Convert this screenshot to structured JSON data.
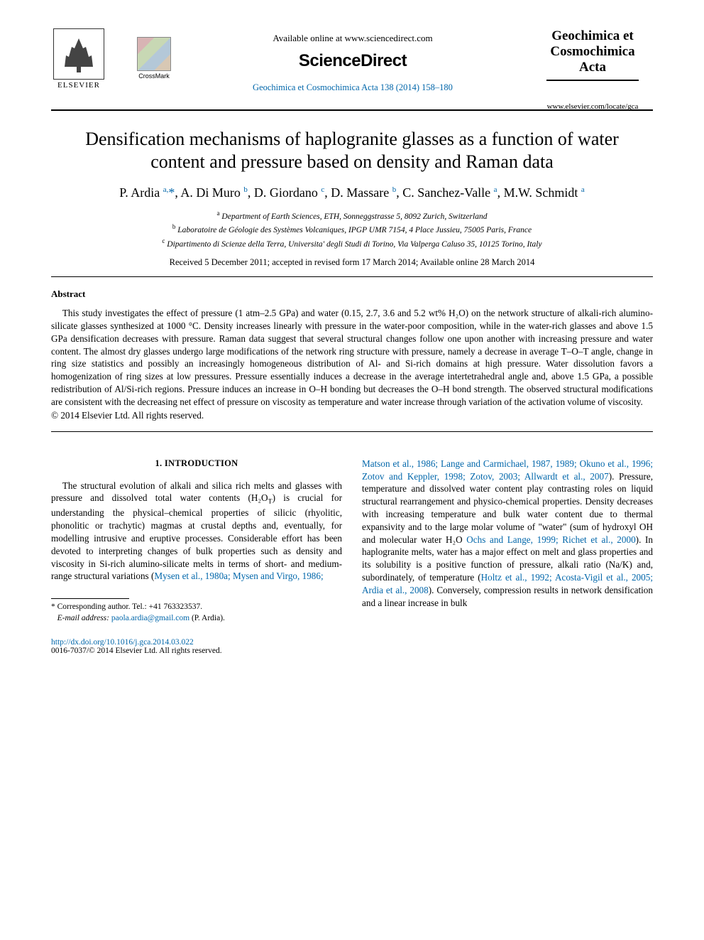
{
  "header": {
    "elsevier_label": "ELSEVIER",
    "crossmark_label": "CrossMark",
    "available_online": "Available online at www.sciencedirect.com",
    "sd_logo": "ScienceDirect",
    "journal_ref_text": "Geochimica et Cosmochimica Acta 138 (2014) 158–180",
    "journal_title_1": "Geochimica et",
    "journal_title_2": "Cosmochimica",
    "journal_title_3": "Acta",
    "journal_locate": "www.elsevier.com/locate/gca"
  },
  "article": {
    "title": "Densification mechanisms of haplogranite glasses as a function of water content and pressure based on density and Raman data",
    "authors_html": "P. Ardia <sup>a,</sup><span class='star'>*</span>, A. Di Muro <sup>b</sup>, D. Giordano <sup>c</sup>, D. Massare <sup>b</sup>, C. Sanchez-Valle <sup>a</sup>, M.W. Schmidt <sup>a</sup>",
    "affiliations": {
      "a": "Department of Earth Sciences, ETH, Sonneggstrasse 5, 8092 Zurich, Switzerland",
      "b": "Laboratoire de Géologie des Systèmes Volcaniques, IPGP UMR 7154, 4 Place Jussieu, 75005 Paris, France",
      "c": "Dipartimento di Scienze della Terra, Universita' degli Studi di Torino, Via Valperga Caluso 35, 10125 Torino, Italy"
    },
    "dates": "Received 5 December 2011; accepted in revised form 17 March 2014; Available online 28 March 2014"
  },
  "abstract": {
    "heading": "Abstract",
    "body": "This study investigates the effect of pressure (1 atm–2.5 GPa) and water (0.15, 2.7, 3.6 and 5.2 wt% H₂O) on the network structure of alkali-rich alumino-silicate glasses synthesized at 1000 °C. Density increases linearly with pressure in the water-poor composition, while in the water-rich glasses and above 1.5 GPa densification decreases with pressure. Raman data suggest that several structural changes follow one upon another with increasing pressure and water content. The almost dry glasses undergo large modifications of the network ring structure with pressure, namely a decrease in average T–O–T angle, change in ring size statistics and possibly an increasingly homogeneous distribution of Al- and Si-rich domains at high pressure. Water dissolution favors a homogenization of ring sizes at low pressures. Pressure essentially induces a decrease in the average intertetrahedral angle and, above 1.5 GPa, a possible redistribution of Al/Si-rich regions. Pressure induces an increase in O–H bonding but decreases the O–H bond strength. The observed structural modifications are consistent with the decreasing net effect of pressure on viscosity as temperature and water increase through variation of the activation volume of viscosity.",
    "copyright": "© 2014 Elsevier Ltd. All rights reserved."
  },
  "body": {
    "section_heading": "1. INTRODUCTION",
    "col1_p1_a": "The structural evolution of alkali and silica rich melts and glasses with pressure and dissolved total water contents (H₂O",
    "col1_p1_b": ") is crucial for understanding the physical–chemical properties of silicic (rhyolitic, phonolitic or trachytic) magmas at crustal depths and, eventually, for modelling intrusive and eruptive processes. Considerable effort has been devoted to interpreting changes of bulk properties such as density and viscosity in Si-rich alumino-silicate melts in terms of short- and medium-range structural variations (",
    "col1_ref1": "Mysen et al., 1980a; Mysen and Virgo, 1986;",
    "col2_ref_cont": "Matson et al., 1986; Lange and Carmichael, 1987, 1989; Okuno et al., 1996; Zotov and Keppler, 1998; Zotov, 2003; Allwardt et al., 2007",
    "col2_p1_a": "). Pressure, temperature and dissolved water content play contrasting roles on liquid structural rearrangement and physico-chemical properties. Density decreases with increasing temperature and bulk water content due to thermal expansivity and to the large molar volume of \"water\" (sum of hydroxyl OH and molecular water H₂O ",
    "col2_ref2": "Ochs and Lange, 1999; Richet et al., 2000",
    "col2_p1_b": "). In haplogranite melts, water has a major effect on melt and glass properties and its solubility is a positive function of pressure, alkali ratio (Na/K) and, subordinately, of temperature (",
    "col2_ref3": "Holtz et al., 1992; Acosta-Vigil et al., 2005; Ardia et al., 2008",
    "col2_p1_c": "). Conversely, compression results in network densification and a linear increase in bulk"
  },
  "footnote": {
    "corr_label": "* Corresponding author. Tel.: +41 763323537.",
    "email_label": "E-mail address:",
    "email": "paola.ardia@gmail.com",
    "email_suffix": " (P. Ardia)."
  },
  "doi": {
    "url": "http://dx.doi.org/10.1016/j.gca.2014.03.022",
    "issn_line": "0016-7037/© 2014 Elsevier Ltd. All rights reserved."
  },
  "colors": {
    "link": "#0066aa",
    "text": "#000000",
    "background": "#ffffff"
  },
  "typography": {
    "title_fontsize_pt": 19,
    "author_fontsize_pt": 14,
    "body_fontsize_pt": 10,
    "abstract_fontsize_pt": 10,
    "affiliation_fontsize_pt": 8.5,
    "font_family": "Times New Roman"
  }
}
